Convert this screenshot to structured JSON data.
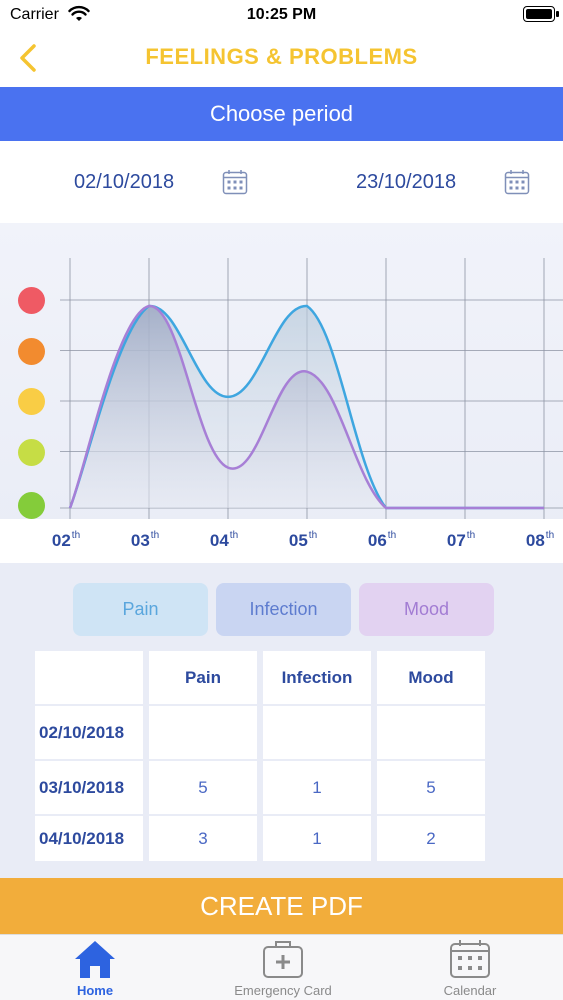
{
  "status_bar": {
    "carrier": "Carrier",
    "time": "10:25 PM"
  },
  "nav": {
    "title": "FEELINGS & PROBLEMS",
    "back_icon": "chevron-left-icon"
  },
  "period": {
    "label": "Choose period",
    "start_date": "02/10/2018",
    "end_date": "23/10/2018",
    "calendar_icon": "calendar-icon"
  },
  "colors": {
    "accent_blue": "#4a72f0",
    "title_yellow": "#f5c431",
    "pdf_orange": "#f2ad3b",
    "pain": "#3ea6e0",
    "infection": "#6d86d9",
    "mood": "#a77fd6"
  },
  "chart_data": {
    "type": "area",
    "x": [
      "02",
      "03",
      "04",
      "05",
      "06",
      "07",
      "08"
    ],
    "x_suffix": "th",
    "ylim": [
      1,
      5
    ],
    "grid": true,
    "y_markers": [
      {
        "level": 5,
        "color": "#ef5a64"
      },
      {
        "level": 4,
        "color": "#f28b2f"
      },
      {
        "level": 3,
        "color": "#f9cd45"
      },
      {
        "level": 2,
        "color": "#c6dd45"
      },
      {
        "level": 1,
        "color": "#84cc3a"
      }
    ],
    "series": [
      {
        "values": [
          1,
          5,
          3.2,
          5,
          1,
          1,
          1
        ],
        "color": "#3ea6e0"
      },
      {
        "values": [
          1,
          5,
          1.8,
          3.7,
          1,
          1,
          1
        ],
        "color": "#a77fd6"
      }
    ]
  },
  "filters": [
    {
      "label": "Pain"
    },
    {
      "label": "Infection"
    },
    {
      "label": "Mood"
    }
  ],
  "table": {
    "headers": [
      "Pain",
      "Infection",
      "Mood"
    ],
    "rows": [
      {
        "date": "02/10/2018",
        "values": [
          "",
          "",
          ""
        ]
      },
      {
        "date": "03/10/2018",
        "values": [
          "5",
          "1",
          "5"
        ]
      },
      {
        "date": "04/10/2018",
        "values": [
          "3",
          "1",
          "2"
        ]
      }
    ]
  },
  "pdf_button": "CREATE PDF",
  "tabs": [
    {
      "label": "Home",
      "icon": "home-icon",
      "active": true
    },
    {
      "label": "Emergency Card",
      "icon": "first-aid-kit-icon",
      "active": false
    },
    {
      "label": "Calendar",
      "icon": "calendar-icon",
      "active": false
    }
  ]
}
